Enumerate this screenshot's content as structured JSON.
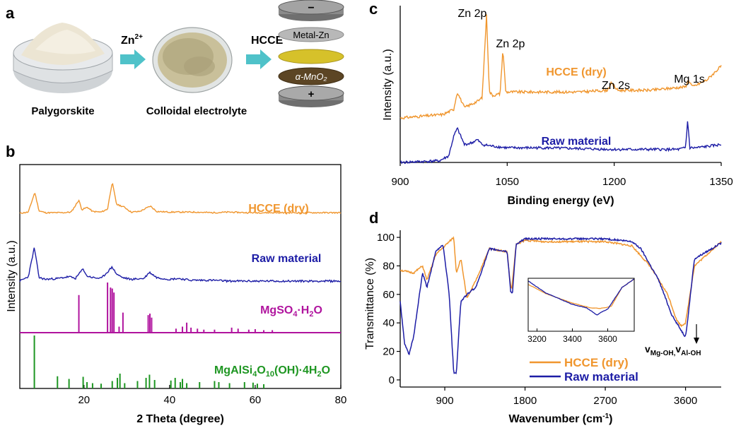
{
  "colors": {
    "orange": "#f0962e",
    "blue": "#1d1da6",
    "magenta": "#b0149e",
    "green": "#1e9622",
    "arrow": "#4fc2c9",
    "axis": "#000000"
  },
  "panel_a": {
    "letter": "a",
    "ion_label_base": "Zn",
    "ion_label_sup": "2+",
    "arrow2_label": "HCCE",
    "dish1_label": "Palygorskite",
    "dish2_label": "Colloidal electrolyte",
    "stack_minus": "−",
    "stack_metal": "Metal-Zn",
    "stack_cathode": "α-MnO₂",
    "stack_plus": "+"
  },
  "chart_data": [
    {
      "panel": "b",
      "type": "line",
      "xlabel": "2 Theta (degree)",
      "ylabel": "Intensity (a.u.)",
      "xlim": [
        5,
        80
      ],
      "xticks": [
        20,
        40,
        60,
        80
      ],
      "series": [
        {
          "name": "HCCE (dry)",
          "x": [
            5,
            7,
            8.5,
            9.5,
            11,
            13,
            15,
            17,
            18.8,
            19.5,
            20.8,
            22,
            24,
            25.5,
            26.6,
            27.6,
            29.5,
            31,
            33,
            35.5,
            37,
            40,
            43,
            46,
            50,
            54,
            58,
            62,
            66,
            70,
            75,
            80
          ],
          "y": [
            20,
            22,
            55,
            24,
            21,
            21,
            21,
            22,
            42,
            26,
            30,
            23,
            22,
            27,
            72,
            35,
            30,
            22,
            23,
            32,
            23,
            22,
            22,
            22,
            21,
            22,
            21,
            21,
            21,
            21,
            21,
            21
          ]
        },
        {
          "name": "Raw material",
          "x": [
            5,
            7,
            8.4,
            9.5,
            11,
            14,
            16.5,
            18,
            19.8,
            20.6,
            22,
            24,
            26.6,
            27.6,
            29,
            31,
            34,
            35.3,
            37,
            40,
            42,
            45,
            48,
            50,
            54,
            58,
            62,
            66,
            70,
            75,
            80
          ],
          "y": [
            22,
            27,
            60,
            26,
            24,
            25,
            27,
            25,
            36,
            28,
            26,
            25,
            38,
            30,
            26,
            24,
            25,
            32,
            26,
            24,
            25,
            23,
            23,
            23,
            22,
            22,
            22,
            22,
            22,
            22,
            22
          ]
        },
        {
          "name": "MgSO4·H2O",
          "type": "bar",
          "x": [
            18.8,
            25.5,
            26.2,
            26.6,
            27.0,
            28.2,
            29.1,
            35.0,
            35.4,
            35.8,
            41.5,
            43.0,
            44.0,
            45.0,
            46.5,
            48.0,
            50.5,
            54.5,
            56.0,
            58.5,
            60.0,
            62.0,
            64.0
          ],
          "y": [
            75,
            100,
            90,
            88,
            80,
            12,
            40,
            35,
            38,
            30,
            8,
            12,
            20,
            10,
            8,
            6,
            6,
            10,
            8,
            6,
            7,
            5,
            5
          ]
        },
        {
          "name": "MgAlSi4O10(OH)·4H2O",
          "type": "bar",
          "x": [
            8.4,
            13.8,
            16.5,
            19.8,
            20.7,
            22.0,
            24.0,
            26.6,
            27.8,
            28.4,
            29.5,
            32.5,
            34.5,
            35.3,
            36.5,
            40.3,
            41.3,
            42.5,
            43.0,
            44.0,
            47.0,
            50.5,
            51.5,
            54.0,
            57.5,
            59.5,
            60.5,
            62.0
          ],
          "y": [
            100,
            23,
            18,
            22,
            12,
            10,
            9,
            14,
            20,
            28,
            10,
            14,
            20,
            26,
            16,
            15,
            20,
            12,
            18,
            10,
            12,
            14,
            12,
            10,
            12,
            11,
            9,
            8
          ]
        }
      ],
      "labels": [
        "HCCE (dry)",
        "Raw material",
        "MgSO4·H2O",
        "MgAlSi4O10(OH)·4H2O"
      ]
    },
    {
      "panel": "c",
      "type": "line",
      "xlabel": "Binding energy (eV)",
      "ylabel": "Intensity (a.u.)",
      "xlim": [
        900,
        1350
      ],
      "xticks": [
        900,
        1050,
        1200,
        1350
      ],
      "series": [
        {
          "name": "HCCE (dry)",
          "x": [
            900,
            960,
            975,
            980,
            990,
            1000,
            1010,
            1015,
            1021,
            1025,
            1030,
            1040,
            1044,
            1048,
            1060,
            1100,
            1150,
            1190,
            1196,
            1205,
            1250,
            1300,
            1304,
            1310,
            1330,
            1350
          ],
          "y": [
            40,
            42,
            45,
            55,
            46,
            48,
            50,
            52,
            100,
            55,
            53,
            54,
            80,
            55,
            55,
            55,
            55,
            56,
            60,
            56,
            56,
            58,
            62,
            58,
            62,
            70
          ]
        },
        {
          "name": "Raw material",
          "x": [
            900,
            955,
            968,
            975,
            980,
            990,
            1000,
            1008,
            1015,
            1030,
            1050,
            1100,
            1200,
            1250,
            1290,
            1300,
            1303,
            1306,
            1315,
            1350
          ],
          "y": [
            4,
            5,
            8,
            20,
            25,
            15,
            16,
            18,
            15,
            14,
            13,
            13,
            12,
            12,
            12,
            13,
            30,
            13,
            13,
            15
          ]
        }
      ],
      "annotations": [
        "Zn 2p",
        "Zn 2p",
        "Zn 2s",
        "Mg 1s"
      ],
      "legend_labels": [
        "HCCE (dry)",
        "Raw material"
      ]
    },
    {
      "panel": "d",
      "type": "line",
      "xlabel": "Wavenumber (cm⁻¹)",
      "ylabel": "Transmittance (%)",
      "xlim": [
        400,
        4000
      ],
      "ylim": [
        -5,
        105
      ],
      "xticks": [
        900,
        1800,
        2700,
        3600
      ],
      "yticks": [
        0,
        20,
        40,
        60,
        80,
        100
      ],
      "series": [
        {
          "name": "HCCE (dry)",
          "x": [
            400,
            550,
            650,
            700,
            800,
            900,
            1000,
            1030,
            1080,
            1150,
            1250,
            1400,
            1600,
            1630,
            1650,
            1700,
            1800,
            2000,
            2400,
            2700,
            3000,
            3200,
            3400,
            3500,
            3550,
            3600,
            3700,
            4000
          ],
          "y": [
            77,
            75,
            80,
            70,
            88,
            94,
            100,
            75,
            85,
            57,
            70,
            92,
            90,
            70,
            63,
            95,
            98,
            97,
            97,
            97,
            94,
            80,
            60,
            42,
            38,
            40,
            80,
            97
          ]
        },
        {
          "name": "Raw material",
          "x": [
            400,
            450,
            500,
            550,
            650,
            700,
            800,
            880,
            950,
            1000,
            1030,
            1080,
            1150,
            1250,
            1400,
            1600,
            1640,
            1660,
            1700,
            1800,
            2200,
            2700,
            3000,
            3100,
            3300,
            3450,
            3550,
            3600,
            3620,
            3700,
            4000
          ],
          "y": [
            55,
            25,
            18,
            30,
            75,
            65,
            90,
            95,
            60,
            5,
            5,
            55,
            60,
            65,
            92,
            90,
            61,
            62,
            95,
            99,
            99,
            99,
            97,
            92,
            70,
            45,
            35,
            30,
            40,
            85,
            96
          ]
        }
      ],
      "inset": {
        "xticks": [
          3200,
          3400,
          3600
        ]
      },
      "annotation_base": "v",
      "annotation_sub1": "Mg-OH,",
      "annotation_sub2": "Al-OH",
      "legend": [
        "HCCE (dry)",
        "Raw material"
      ]
    }
  ],
  "panel_letters": {
    "b": "b",
    "c": "c",
    "d": "d"
  },
  "inset_ticks": [
    "3200",
    "3400",
    "3600"
  ]
}
